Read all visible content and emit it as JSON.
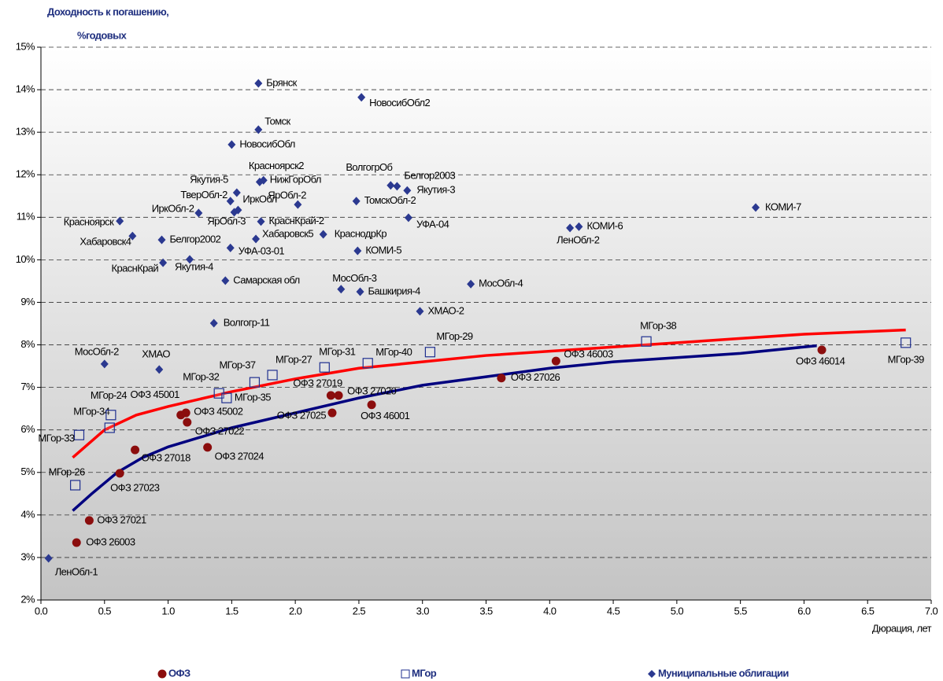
{
  "chart_data": {
    "type": "scatter",
    "y_label_lines": [
      "Доходность к погашению,",
      "%годовых"
    ],
    "x_label": "Дюрация, лет",
    "xlim": [
      0,
      7
    ],
    "ylim": [
      2,
      15
    ],
    "grid": true,
    "legend": "bottom",
    "xticks": [
      {
        "value": 0,
        "label": "0.0"
      },
      0.5,
      {
        "value": 1,
        "label": "1.0"
      },
      1.5,
      {
        "value": 2,
        "label": "2.0"
      },
      2.5,
      {
        "value": 3,
        "label": "3.0"
      },
      3.5,
      {
        "value": 4,
        "label": "4.0"
      },
      4.5,
      {
        "value": 5,
        "label": "5.0"
      },
      5.5,
      {
        "value": 6,
        "label": "6.0"
      },
      6.5,
      {
        "value": 7,
        "label": "7.0"
      }
    ],
    "yticks": [
      {
        "value": 2,
        "label": "2%"
      },
      {
        "value": 3,
        "label": "3%"
      },
      {
        "value": 4,
        "label": "4%"
      },
      {
        "value": 5,
        "label": "5%"
      },
      {
        "value": 6,
        "label": "6%"
      },
      {
        "value": 7,
        "label": "7%"
      },
      {
        "value": 8,
        "label": "8%"
      },
      {
        "value": 9,
        "label": "9%"
      },
      {
        "value": 10,
        "label": "10%"
      },
      {
        "value": 11,
        "label": "11%"
      },
      {
        "value": 12,
        "label": "12%"
      },
      {
        "value": 13,
        "label": "13%"
      },
      {
        "value": 14,
        "label": "14%"
      },
      {
        "value": 15,
        "label": "15%"
      }
    ],
    "series": [
      {
        "name": "ОФЗ",
        "marker": "circle",
        "color": "#8b0d0d",
        "labels": [
          "ОФЗ 26003",
          "ОФЗ 27021",
          "ОФЗ 27023",
          "ОФЗ 27018",
          "ОФЗ 27024",
          "ОФЗ 27022",
          "ОФЗ 45001",
          "ОФЗ 45002",
          "ОФЗ 27025",
          "ОФЗ 27019",
          "ОФЗ 27020",
          "ОФЗ 46001",
          "ОФЗ 27026",
          "ОФЗ 46003",
          "ОФЗ 46014"
        ],
        "x": [
          0.28,
          0.38,
          0.62,
          0.74,
          1.31,
          1.15,
          1.1,
          1.14,
          2.29,
          2.28,
          2.34,
          2.6,
          3.62,
          4.05,
          6.14
        ],
        "values": [
          3.35,
          3.87,
          4.98,
          5.53,
          5.59,
          6.18,
          6.35,
          6.4,
          6.4,
          6.81,
          6.81,
          6.59,
          7.22,
          7.62,
          7.88
        ]
      },
      {
        "name": "МГор",
        "marker": "square",
        "color": "#1f2f8f",
        "labels": [
          "МГор-26",
          "МГор-33",
          "МГор-34",
          "МГор-24",
          "МГор-32",
          "МГор-35",
          "МГор-37",
          "МГор-27",
          "МГор-31",
          "МГор-40",
          "МГор-29",
          "МГор-38",
          "МГор-39"
        ],
        "x": [
          0.27,
          0.3,
          0.54,
          0.55,
          1.4,
          1.46,
          1.68,
          1.82,
          2.23,
          2.57,
          3.06,
          4.76,
          6.8
        ],
        "values": [
          4.7,
          5.88,
          6.05,
          6.35,
          6.86,
          6.75,
          7.12,
          7.29,
          7.47,
          7.57,
          7.83,
          8.08,
          8.05
        ]
      },
      {
        "name": "Муниципальные облигации",
        "marker": "diamond",
        "color": "#2b3990",
        "labels": [
          "ЛенОбл-1",
          "Брянск",
          "НовосибОбл2",
          "Томск",
          "НовосибОбл",
          "Красноярск2",
          "НижГорОбл",
          "ВолгогрОб",
          "Белгор2003",
          "Якутия-3",
          "Якутия-5",
          "ТверОбл-2",
          "ИркОбл",
          "ЯрОбл-3",
          "ЯрОбл-2",
          "ТомскОбл-2",
          "ИркОбл-2",
          "КраснКрай-2",
          "УФА-04",
          "Красноярск",
          "КОМИ-7",
          "КОМИ-6",
          "ЛенОбл-2",
          "Хабаровск4",
          "Белгор2002",
          "Хабаровск5",
          "КраснодрКр",
          "КОМИ-5",
          "УФА-03-01",
          "КраснКрай",
          "Якутия-4",
          "Самарская обл",
          "МосОбл-3",
          "Башкирия-4",
          "МосОбл-4",
          "ХМАО-2",
          "Волгогр-11",
          "МосОбл-2",
          "ХМАО"
        ],
        "x": [
          0.06,
          1.71,
          2.52,
          1.71,
          1.5,
          1.72,
          1.75,
          2.75,
          2.8,
          2.88,
          1.54,
          1.49,
          1.55,
          1.52,
          2.02,
          2.48,
          1.24,
          1.73,
          2.89,
          0.62,
          5.62,
          4.23,
          4.16,
          0.72,
          0.95,
          1.69,
          2.22,
          2.49,
          1.49,
          0.96,
          1.17,
          1.45,
          2.36,
          2.51,
          3.38,
          2.98,
          1.36,
          0.5,
          0.93
        ],
        "values": [
          2.98,
          14.15,
          13.82,
          13.06,
          12.71,
          11.83,
          11.87,
          11.75,
          11.73,
          11.63,
          11.58,
          11.38,
          11.17,
          11.12,
          11.3,
          11.38,
          11.1,
          10.9,
          10.99,
          10.91,
          11.23,
          10.78,
          10.75,
          10.56,
          10.47,
          10.49,
          10.6,
          10.21,
          10.28,
          9.93,
          10.01,
          9.51,
          9.31,
          9.25,
          9.43,
          8.79,
          8.51,
          7.55,
          7.42
        ]
      }
    ],
    "lines": [
      {
        "color": "#ff0000",
        "x": [
          0.25,
          0.5,
          0.75,
          1.0,
          1.5,
          2.0,
          2.5,
          3.0,
          3.5,
          4.0,
          4.5,
          5.0,
          5.5,
          6.0,
          6.8
        ],
        "values": [
          5.35,
          6.0,
          6.35,
          6.55,
          6.9,
          7.2,
          7.45,
          7.6,
          7.75,
          7.85,
          7.95,
          8.05,
          8.15,
          8.25,
          8.35
        ]
      },
      {
        "color": "#00007f",
        "x": [
          0.25,
          0.4,
          0.6,
          0.8,
          1.0,
          1.5,
          2.0,
          2.5,
          3.0,
          3.5,
          4.0,
          4.5,
          5.0,
          5.5,
          6.0,
          6.1
        ],
        "values": [
          4.1,
          4.5,
          5.0,
          5.35,
          5.6,
          6.05,
          6.4,
          6.75,
          7.05,
          7.25,
          7.45,
          7.6,
          7.7,
          7.8,
          7.95,
          7.98
        ]
      }
    ]
  }
}
